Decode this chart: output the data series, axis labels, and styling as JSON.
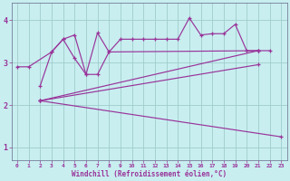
{
  "background_color": "#c8eef0",
  "grid_color": "#a0cccc",
  "line_color": "#993399",
  "xlabel": "Windchill (Refroidissement éolien,°C)",
  "xlabel_color": "#993399",
  "xlim": [
    -0.5,
    23.5
  ],
  "ylim": [
    0.7,
    4.4
  ],
  "yticks": [
    1,
    2,
    3,
    4
  ],
  "xticks": [
    0,
    1,
    2,
    3,
    4,
    5,
    6,
    7,
    8,
    9,
    10,
    11,
    12,
    13,
    14,
    15,
    16,
    17,
    18,
    19,
    20,
    21,
    22,
    23
  ],
  "series": [
    {
      "x": [
        0,
        1,
        3,
        4,
        5,
        6,
        7,
        8,
        9,
        10,
        11,
        12,
        13,
        14,
        15,
        16,
        17,
        18,
        19,
        20,
        21
      ],
      "y": [
        2.9,
        2.9,
        3.25,
        3.55,
        3.65,
        2.72,
        3.7,
        3.25,
        3.55,
        3.55,
        3.55,
        3.55,
        3.55,
        3.55,
        4.05,
        3.65,
        3.68,
        3.68,
        3.9,
        3.28,
        3.28
      ]
    },
    {
      "x": [
        2,
        3,
        4,
        5,
        6,
        7,
        8,
        21,
        22
      ],
      "y": [
        2.45,
        3.25,
        3.55,
        3.1,
        2.72,
        2.72,
        3.25,
        3.28,
        3.28
      ]
    },
    {
      "x": [
        2,
        21
      ],
      "y": [
        2.1,
        3.28
      ]
    },
    {
      "x": [
        2,
        21
      ],
      "y": [
        2.1,
        2.95
      ]
    },
    {
      "x": [
        2,
        23
      ],
      "y": [
        2.1,
        1.25
      ]
    }
  ]
}
